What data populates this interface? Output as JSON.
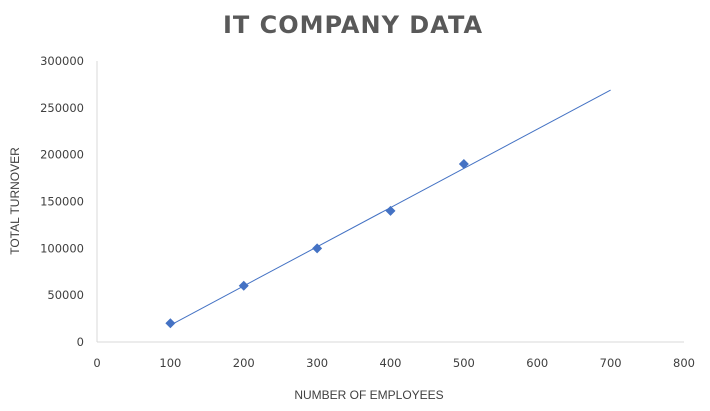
{
  "chart_data": {
    "type": "scatter",
    "title": "IT COMPANY DATA",
    "xlabel": "NUMBER OF EMPLOYEES",
    "ylabel": "TOTAL TURNOVER",
    "xlim": [
      0,
      800
    ],
    "ylim": [
      0,
      300000
    ],
    "xticks": [
      "0",
      "100",
      "200",
      "300",
      "400",
      "500",
      "600",
      "700",
      "800"
    ],
    "yticks": [
      "0",
      "50000",
      "100000",
      "150000",
      "200000",
      "250000",
      "300000"
    ],
    "series": [
      {
        "x": [
          100,
          200,
          300,
          400,
          500
        ],
        "y": [
          20000,
          60000,
          100000,
          140000,
          190000
        ]
      }
    ],
    "trendline": {
      "x": [
        100,
        700
      ],
      "y": [
        18000,
        269000
      ]
    },
    "grid": false,
    "colors": {
      "marker": "#4472C4",
      "trendline": "#4472C4",
      "axis": "#d9d9d9"
    }
  }
}
